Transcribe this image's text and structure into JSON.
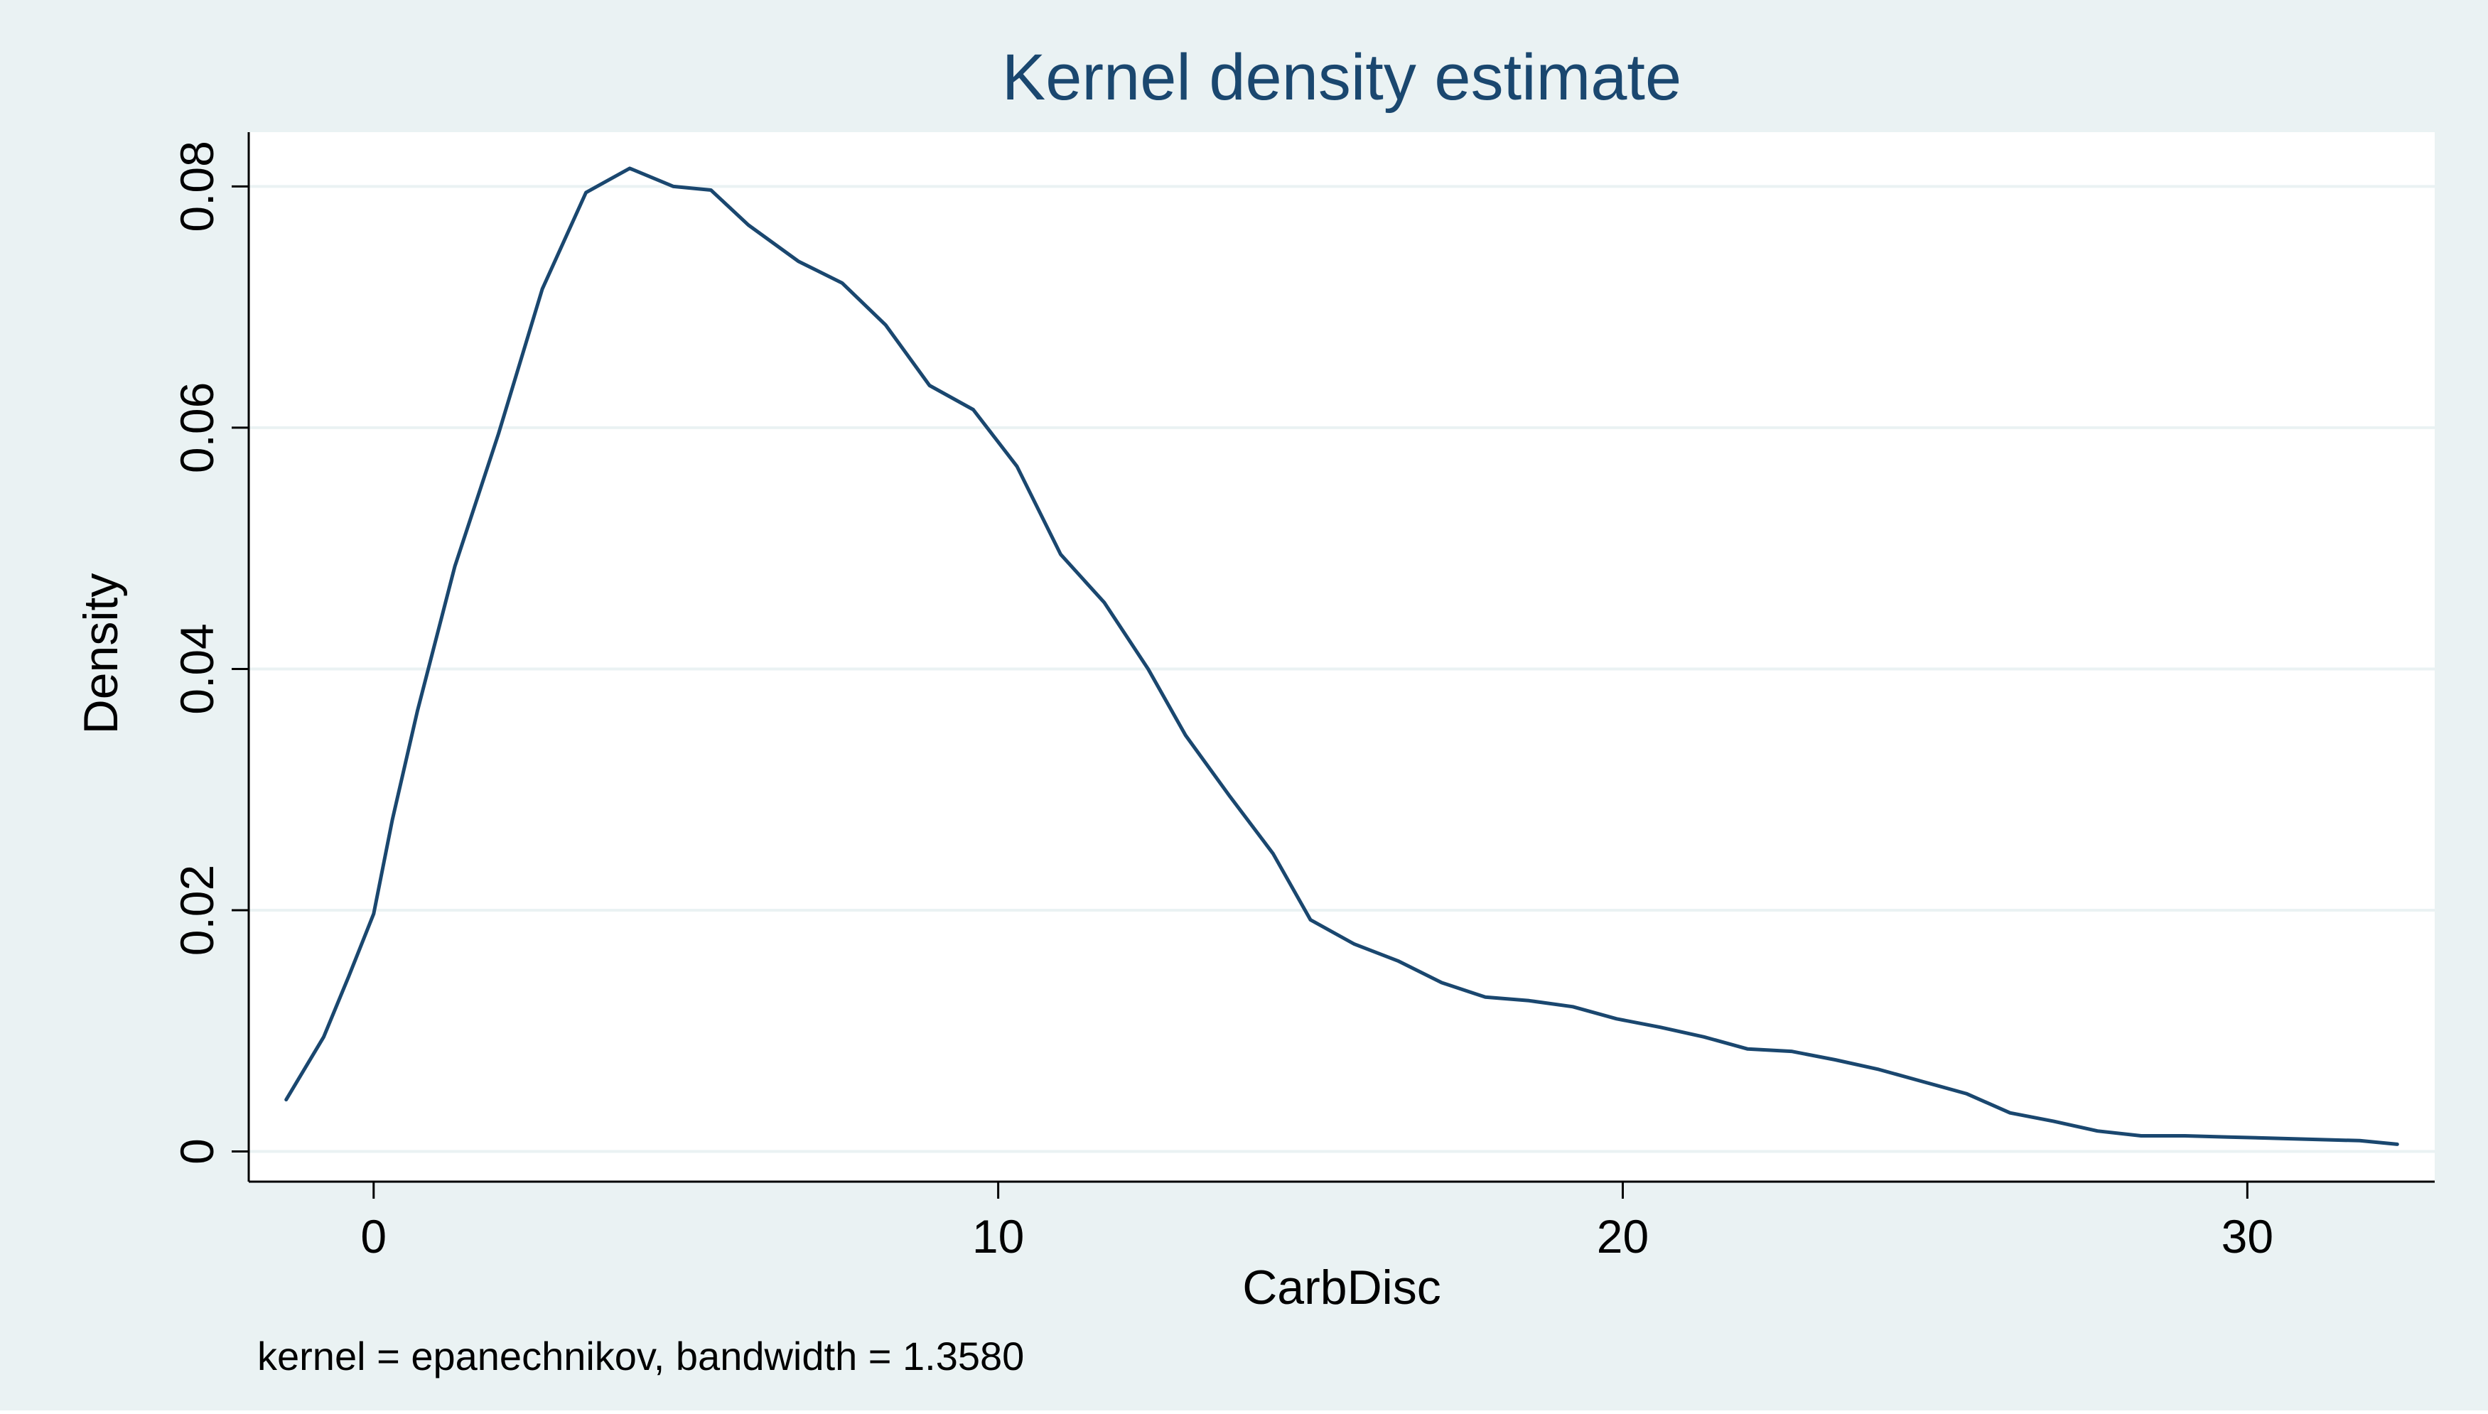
{
  "colors": {
    "outer_background": "#eaf2f3",
    "plot_background": "#ffffff",
    "gridline": "#eaf2f3",
    "axis": "#000000",
    "line": "#1a476f",
    "title": "#1a476f",
    "text": "#000000"
  },
  "chart_data": {
    "type": "line",
    "title": "Kernel density estimate",
    "xlabel": "CarbDisc",
    "ylabel": "Density",
    "note": "kernel = epanechnikov, bandwidth = 1.3580",
    "xlim": [
      -2.0,
      33.0
    ],
    "ylim": [
      -0.0025,
      0.0845
    ],
    "xticks": [
      0,
      10,
      20,
      30
    ],
    "xtick_labels": [
      "0",
      "10",
      "20",
      "30"
    ],
    "yticks": [
      0,
      0.02,
      0.04,
      0.06,
      0.08
    ],
    "ytick_labels": [
      "0",
      "0.02",
      "0.04",
      "0.06",
      "0.08"
    ],
    "grid": true,
    "legend": "none",
    "series": [
      {
        "name": "Density",
        "x": [
          -1.4,
          -0.8,
          -0.4,
          0.0,
          0.3,
          0.7,
          1.3,
          2.0,
          2.7,
          3.4,
          4.1,
          4.8,
          5.4,
          6.0,
          6.8,
          7.5,
          8.2,
          8.9,
          9.6,
          10.3,
          11.0,
          11.7,
          12.4,
          13.0,
          13.7,
          14.4,
          15.0,
          15.7,
          16.4,
          17.1,
          17.8,
          18.5,
          19.2,
          19.9,
          20.6,
          21.3,
          22.0,
          22.7,
          23.4,
          24.1,
          24.8,
          25.5,
          26.2,
          26.9,
          27.6,
          28.3,
          29.0,
          29.7,
          30.4,
          31.1,
          31.8,
          32.4
        ],
        "y": [
          0.0043,
          0.0095,
          0.0145,
          0.0197,
          0.0275,
          0.0365,
          0.0485,
          0.0595,
          0.0715,
          0.0795,
          0.0815,
          0.08,
          0.0797,
          0.0768,
          0.0738,
          0.072,
          0.0685,
          0.0635,
          0.0615,
          0.0568,
          0.0495,
          0.0455,
          0.04,
          0.0345,
          0.0295,
          0.0247,
          0.0192,
          0.0172,
          0.0158,
          0.014,
          0.0128,
          0.0125,
          0.012,
          0.011,
          0.0103,
          0.0095,
          0.0085,
          0.0083,
          0.0076,
          0.0068,
          0.0058,
          0.0048,
          0.0032,
          0.0025,
          0.0017,
          0.0013,
          0.0013,
          0.0012,
          0.0011,
          0.001,
          0.0009,
          0.0006
        ]
      }
    ]
  }
}
